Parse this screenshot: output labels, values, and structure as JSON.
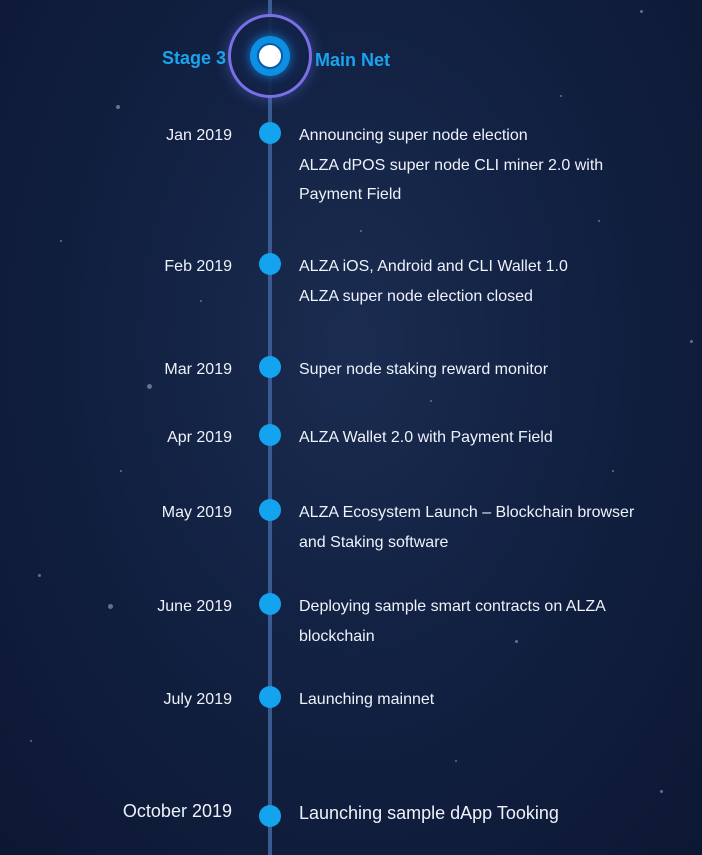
{
  "stage": {
    "label": "Stage 3",
    "name": "Main Net"
  },
  "entries": [
    {
      "date": "Jan 2019",
      "lines": [
        "Announcing super node election",
        "ALZA dPOS super node CLI miner 2.0 with",
        "Payment Field"
      ]
    },
    {
      "date": "Feb 2019",
      "lines": [
        "ALZA iOS, Android and CLI Wallet 1.0",
        "ALZA super node election closed"
      ]
    },
    {
      "date": "Mar 2019",
      "lines": [
        "Super node staking reward monitor"
      ]
    },
    {
      "date": "Apr 2019",
      "lines": [
        "ALZA Wallet 2.0 with Payment Field"
      ]
    },
    {
      "date": "May 2019",
      "lines": [
        "ALZA Ecosystem Launch – Blockchain browser",
        "and Staking software"
      ]
    },
    {
      "date": "June 2019",
      "lines": [
        "Deploying sample smart contracts on ALZA",
        "blockchain"
      ]
    },
    {
      "date": "July 2019",
      "lines": [
        "Launching mainnet"
      ]
    },
    {
      "date": "October 2019",
      "lines": [
        "Launching sample dApp Tooking"
      ]
    }
  ],
  "colors": {
    "accent": "#1aa3ee",
    "dot": "#14a3ee",
    "line": "#3a5a92",
    "ring": "#7b6fe6",
    "text": "#eef2fa",
    "background": "#122142"
  }
}
